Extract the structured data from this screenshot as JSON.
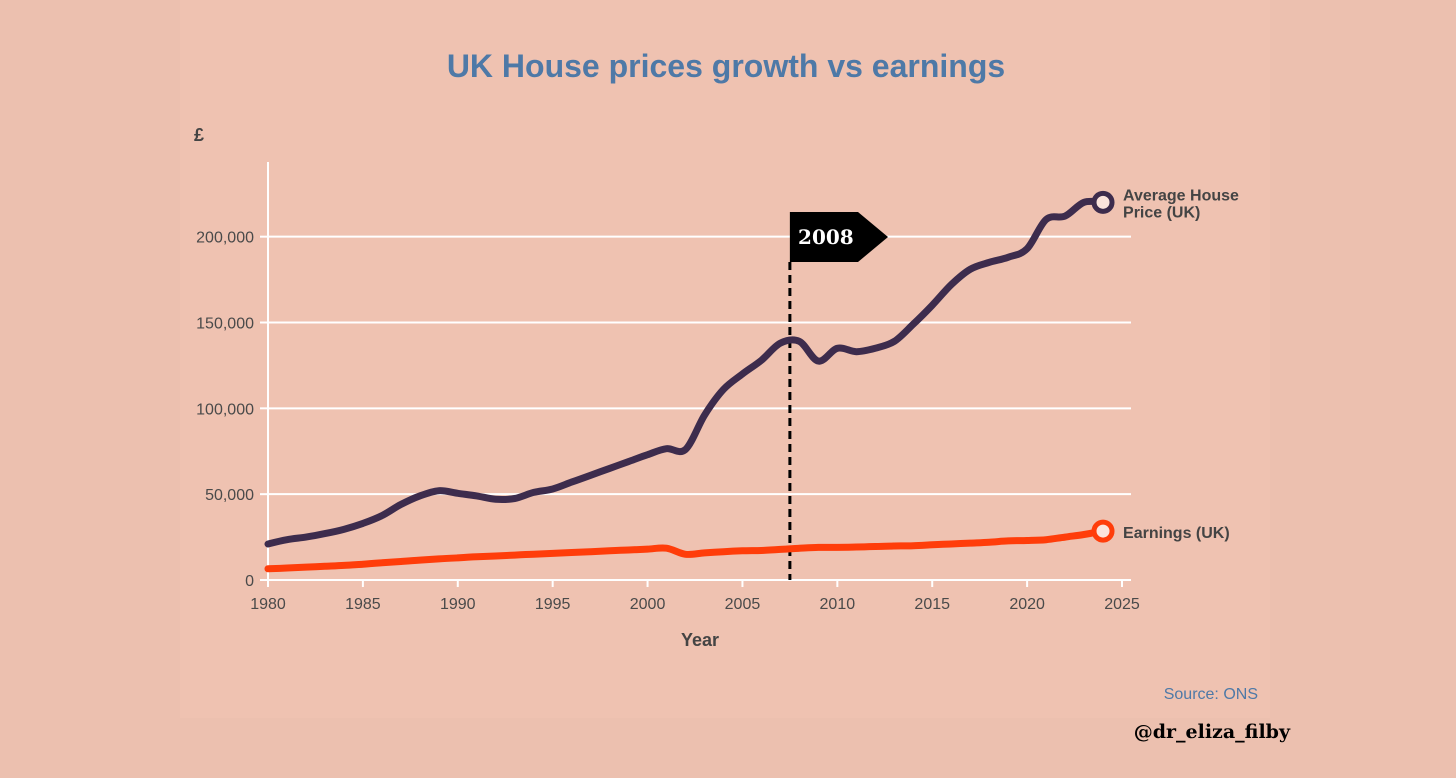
{
  "colors": {
    "background": "#ecc0af",
    "title": "#4e79a7",
    "house": "#3d2c4d",
    "earnings": "#ff3d0a",
    "grid": "#ffffff",
    "flag": "#000000"
  },
  "chart_data": {
    "type": "line",
    "title": "UK House prices growth vs earnings",
    "y_unit_label": "£",
    "xlabel": "Year",
    "ylabel": "",
    "xlim": [
      1980,
      2025
    ],
    "ylim": [
      0,
      240000
    ],
    "x_ticks": [
      1980,
      1985,
      1990,
      1995,
      2000,
      2005,
      2010,
      2015,
      2020,
      2025
    ],
    "y_ticks": [
      0,
      50000,
      100000,
      150000,
      200000
    ],
    "x_tick_labels": [
      "1980",
      "1985",
      "1990",
      "1995",
      "2000",
      "2005",
      "2010",
      "2015",
      "2020",
      "2025"
    ],
    "y_tick_labels": [
      "0",
      "50,000",
      "100,000",
      "150,000",
      "200,000"
    ],
    "grid": true,
    "series": [
      {
        "name": "Average House Price (UK)",
        "label_lines": [
          "Average House",
          "Price (UK)"
        ],
        "x": [
          1980,
          1981,
          1982,
          1983,
          1984,
          1985,
          1986,
          1987,
          1988,
          1989,
          1990,
          1991,
          1992,
          1993,
          1994,
          1995,
          1996,
          1997,
          1998,
          1999,
          2000,
          2001,
          2002,
          2003,
          2004,
          2005,
          2006,
          2007,
          2008,
          2009,
          2010,
          2011,
          2012,
          2013,
          2014,
          2015,
          2016,
          2017,
          2018,
          2019,
          2020,
          2021,
          2022,
          2023,
          2024
        ],
        "values": [
          21000,
          23500,
          25000,
          27000,
          29500,
          33000,
          37500,
          44000,
          49000,
          52000,
          50500,
          49000,
          47000,
          47500,
          51000,
          53000,
          57000,
          61000,
          65000,
          69000,
          73000,
          76500,
          76000,
          96000,
          111000,
          120000,
          128000,
          138000,
          139000,
          127500,
          135000,
          133000,
          135000,
          139000,
          149000,
          160000,
          172000,
          181000,
          185000,
          188000,
          193000,
          210000,
          212000,
          220000,
          220000
        ]
      },
      {
        "name": "Earnings (UK)",
        "label_lines": [
          "Earnings (UK)"
        ],
        "x": [
          1980,
          1981,
          1982,
          1983,
          1984,
          1985,
          1986,
          1987,
          1988,
          1989,
          1990,
          1991,
          1992,
          1993,
          1994,
          1995,
          1996,
          1997,
          1998,
          1999,
          2000,
          2001,
          2002,
          2003,
          2004,
          2005,
          2006,
          2007,
          2008,
          2009,
          2010,
          2011,
          2012,
          2013,
          2014,
          2015,
          2016,
          2017,
          2018,
          2019,
          2020,
          2021,
          2022,
          2023,
          2024
        ],
        "values": [
          6500,
          7000,
          7500,
          8000,
          8500,
          9200,
          10000,
          10800,
          11600,
          12300,
          12900,
          13500,
          14000,
          14500,
          15000,
          15500,
          16000,
          16500,
          17000,
          17500,
          18000,
          18500,
          15000,
          15800,
          16500,
          17000,
          17200,
          17800,
          18500,
          19000,
          19000,
          19200,
          19500,
          19800,
          20000,
          20500,
          21000,
          21500,
          22000,
          22800,
          23000,
          23500,
          25000,
          26500,
          28500
        ]
      }
    ],
    "annotations": [
      {
        "type": "vertical-dashed-line",
        "x": 2007.5,
        "label": "2008"
      }
    ],
    "source": "Source: ONS"
  },
  "footer": {
    "handle": "@dr_eliza_filby"
  }
}
